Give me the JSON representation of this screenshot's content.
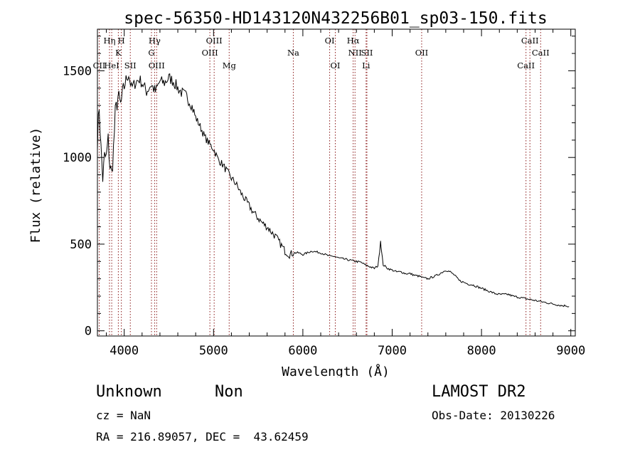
{
  "chart_data": {
    "type": "line",
    "title": "spec-56350-HD143120N432256B01_sp03-150.fits",
    "xlabel": "Wavelength (Å)",
    "ylabel": "Flux (relative)",
    "xlim": [
      3700,
      9050
    ],
    "ylim": [
      -30,
      1740
    ],
    "xticks": [
      4000,
      5000,
      6000,
      7000,
      8000,
      9000
    ],
    "yticks": [
      0,
      500,
      1000,
      1500
    ],
    "grid": false,
    "series": [
      {
        "x": [
          3700,
          3720,
          3740,
          3760,
          3780,
          3800,
          3820,
          3840,
          3860,
          3880,
          3900,
          3930,
          3960,
          3990,
          4020,
          4050,
          4080,
          4110,
          4140,
          4170,
          4200,
          4250,
          4300,
          4350,
          4400,
          4450,
          4500,
          4550,
          4600,
          4650,
          4700,
          4750,
          4800,
          4850,
          4900,
          4950,
          5000,
          5050,
          5100,
          5150,
          5200,
          5250,
          5300,
          5350,
          5400,
          5450,
          5500,
          5550,
          5600,
          5650,
          5700,
          5750,
          5800,
          5850,
          5900,
          5950,
          6000,
          6050,
          6100,
          6150,
          6200,
          6250,
          6300,
          6350,
          6400,
          6450,
          6500,
          6550,
          6600,
          6650,
          6700,
          6750,
          6800,
          6840,
          6860,
          6870,
          6880,
          6900,
          6950,
          7000,
          7050,
          7100,
          7150,
          7200,
          7250,
          7300,
          7350,
          7400,
          7450,
          7500,
          7550,
          7600,
          7650,
          7700,
          7750,
          7800,
          7850,
          7900,
          7950,
          8000,
          8050,
          8100,
          8150,
          8200,
          8250,
          8300,
          8350,
          8400,
          8450,
          8500,
          8550,
          8600,
          8650,
          8700,
          8750,
          8800,
          8850,
          8900,
          8950,
          8980
        ],
        "y": [
          1100,
          1300,
          1050,
          880,
          1000,
          1000,
          1100,
          950,
          900,
          1050,
          1250,
          1350,
          1300,
          1380,
          1450,
          1480,
          1400,
          1420,
          1440,
          1450,
          1430,
          1380,
          1420,
          1380,
          1440,
          1430,
          1460,
          1440,
          1400,
          1370,
          1350,
          1310,
          1230,
          1180,
          1120,
          1080,
          1050,
          990,
          960,
          920,
          880,
          850,
          800,
          760,
          720,
          680,
          650,
          620,
          600,
          570,
          540,
          500,
          460,
          440,
          450,
          450,
          440,
          450,
          460,
          455,
          450,
          440,
          430,
          430,
          420,
          415,
          410,
          405,
          400,
          395,
          380,
          370,
          360,
          375,
          460,
          520,
          460,
          380,
          360,
          350,
          340,
          340,
          330,
          330,
          320,
          315,
          305,
          300,
          310,
          320,
          335,
          350,
          340,
          320,
          290,
          280,
          270,
          265,
          255,
          245,
          235,
          225,
          215,
          210,
          210,
          210,
          200,
          195,
          190,
          185,
          180,
          175,
          170,
          165,
          160,
          155,
          150,
          145,
          145,
          140
        ]
      }
    ],
    "lines": [
      {
        "label": "CII",
        "x": 3720,
        "row": 3
      },
      {
        "label": "Hη",
        "x": 3835,
        "row": 1
      },
      {
        "label": "HeI",
        "x": 3860,
        "row": 3
      },
      {
        "label": "K",
        "x": 3934,
        "row": 2
      },
      {
        "label": "H",
        "x": 3968,
        "row": 1
      },
      {
        "label": "SII",
        "x": 4068,
        "row": 3
      },
      {
        "label": "Hγ",
        "x": 4340,
        "row": 1
      },
      {
        "label": "G",
        "x": 4305,
        "row": 2
      },
      {
        "label": "OIII",
        "x": 4363,
        "row": 3
      },
      {
        "label": "OIII",
        "x": 5007,
        "row": 1
      },
      {
        "label": "OIII",
        "x": 4959,
        "row": 2
      },
      {
        "label": "Mg",
        "x": 5175,
        "row": 3
      },
      {
        "label": "Na",
        "x": 5893,
        "row": 2
      },
      {
        "label": "OI",
        "x": 6300,
        "row": 1
      },
      {
        "label": "OI",
        "x": 6363,
        "row": 3
      },
      {
        "label": "Hα",
        "x": 6563,
        "row": 1
      },
      {
        "label": "NII",
        "x": 6584,
        "row": 2
      },
      {
        "label": "SII",
        "x": 6717,
        "row": 2
      },
      {
        "label": "Li",
        "x": 6708,
        "row": 3
      },
      {
        "label": "OII",
        "x": 7330,
        "row": 2
      },
      {
        "label": "CaII",
        "x": 8542,
        "row": 1
      },
      {
        "label": "CaII",
        "x": 8662,
        "row": 2
      },
      {
        "label": "CaII",
        "x": 8498,
        "row": 3
      }
    ]
  },
  "info": {
    "object_class": "Unknown",
    "subclass": "Non",
    "survey": "LAMOST DR2",
    "cz": "cz = NaN",
    "obs_date": "Obs-Date: 20130226",
    "coords": "RA = 216.89057, DEC =  43.62459"
  },
  "colors": {
    "spectrum": "#000000",
    "line_marker": "#8b1a1a"
  }
}
